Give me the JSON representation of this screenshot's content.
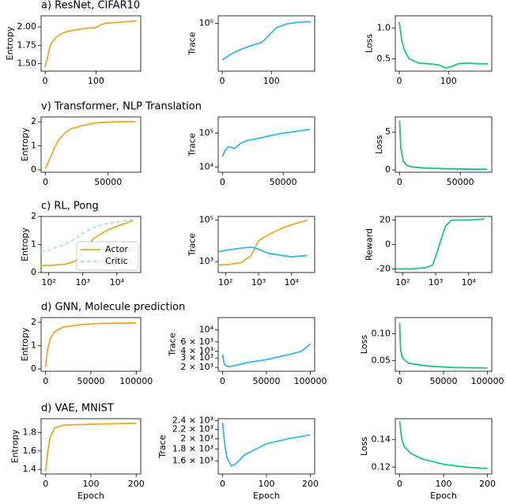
{
  "chart_data": [
    {
      "type": "line",
      "title": "a) ResNet, CIFAR10",
      "ylabel": "Entropy",
      "x": [
        0,
        5,
        10,
        20,
        30,
        40,
        60,
        80,
        100,
        110,
        120,
        140,
        160,
        180
      ],
      "series": [
        {
          "color": "#e8a92a",
          "values": [
            1.45,
            1.6,
            1.75,
            1.85,
            1.9,
            1.93,
            1.96,
            1.98,
            1.99,
            2.03,
            2.05,
            2.06,
            2.07,
            2.08
          ]
        }
      ],
      "xlim": [
        -8,
        188
      ],
      "xticks": [
        0,
        100
      ],
      "ylim": [
        1.4,
        2.15
      ],
      "yticks": [
        {
          "value": 1.5,
          "label": "1.50"
        },
        {
          "value": 1.75,
          "label": "1.75"
        },
        {
          "value": 2.0,
          "label": "2.00"
        }
      ]
    },
    {
      "type": "line",
      "ylabel": "Trace",
      "ylog": true,
      "x": [
        0,
        20,
        40,
        60,
        80,
        90,
        100,
        110,
        130,
        150,
        170,
        180
      ],
      "series": [
        {
          "color": "#36b6e8",
          "values": [
            10000,
            15000,
            20000,
            25000,
            30000,
            40000,
            55000,
            75000,
            95000,
            105000,
            110000,
            110000
          ]
        }
      ],
      "xlim": [
        -8,
        188
      ],
      "xticks": [
        0,
        100
      ],
      "ylim": [
        5000,
        160000
      ],
      "yticks": [
        {
          "value": 100000,
          "label": "10⁵"
        }
      ]
    },
    {
      "type": "line",
      "ylabel": "Loss",
      "x": [
        0,
        5,
        10,
        20,
        40,
        60,
        80,
        95,
        105,
        120,
        140,
        160,
        180
      ],
      "series": [
        {
          "color": "#1fbf8f",
          "values": [
            1.1,
            0.8,
            0.65,
            0.5,
            0.43,
            0.42,
            0.4,
            0.35,
            0.37,
            0.42,
            0.43,
            0.42,
            0.42
          ]
        }
      ],
      "xlim": [
        -8,
        188
      ],
      "xticks": [
        0,
        100
      ],
      "ylim": [
        0.3,
        1.2
      ],
      "yticks": [
        0.5,
        {
          "value": 1.0,
          "label": "1.0"
        }
      ]
    },
    {
      "type": "line",
      "title": "v) Transformer, NLP Translation",
      "ylabel": "Entropy",
      "x": [
        0,
        3000,
        7000,
        10000,
        15000,
        20000,
        30000,
        40000,
        50000,
        60000,
        72000
      ],
      "series": [
        {
          "color": "#e8a92a",
          "values": [
            0.05,
            0.4,
            0.9,
            1.2,
            1.5,
            1.7,
            1.85,
            1.95,
            1.98,
            2.0,
            2.0
          ]
        }
      ],
      "xlim": [
        -3500,
        76000
      ],
      "xticks": [
        0,
        50000
      ],
      "ylim": [
        -0.1,
        2.2
      ],
      "yticks": [
        0,
        1,
        2
      ]
    },
    {
      "type": "line",
      "ylabel": "Trace",
      "ylog": true,
      "x": [
        0,
        2000,
        5000,
        10000,
        15000,
        20000,
        30000,
        40000,
        50000,
        60000,
        72000
      ],
      "series": [
        {
          "color": "#36b6e8",
          "values": [
            20000,
            30000,
            40000,
            35000,
            50000,
            60000,
            70000,
            85000,
            100000,
            110000,
            130000
          ]
        }
      ],
      "xlim": [
        -3500,
        76000
      ],
      "xticks": [
        0,
        50000
      ],
      "ylim": [
        7000,
        300000
      ],
      "yticks": [
        {
          "value": 10000,
          "label": "10⁴"
        },
        {
          "value": 100000,
          "label": "10⁵"
        }
      ]
    },
    {
      "type": "line",
      "ylabel": "Loss",
      "x": [
        0,
        1000,
        3000,
        6000,
        10000,
        20000,
        40000,
        60000,
        72000
      ],
      "series": [
        {
          "color": "#1fbf8f",
          "values": [
            6.5,
            3,
            1.2,
            0.6,
            0.4,
            0.25,
            0.15,
            0.1,
            0.1
          ]
        }
      ],
      "xlim": [
        -3500,
        76000
      ],
      "xticks": [
        0,
        50000
      ],
      "ylim": [
        -0.3,
        7
      ],
      "yticks": [
        0,
        5
      ]
    },
    {
      "type": "line",
      "title": "c) RL, Pong",
      "ylabel": "Entropy",
      "xlog": true,
      "legend": "lower right",
      "x": [
        60,
        100,
        300,
        600,
        1000,
        2000,
        5000,
        10000,
        30000
      ],
      "series": [
        {
          "name": "Actor",
          "color": "#e8a92a",
          "values": [
            0.25,
            0.25,
            0.3,
            0.4,
            0.7,
            1.2,
            1.5,
            1.65,
            1.85
          ]
        },
        {
          "name": "Critic",
          "color": "#a8dcef",
          "dash": true,
          "values": [
            0.75,
            0.8,
            1.0,
            1.2,
            1.4,
            1.6,
            1.75,
            1.8,
            1.9
          ]
        }
      ],
      "xlim": [
        60,
        50000
      ],
      "xticks": [
        {
          "value": 100,
          "label": "10²"
        },
        {
          "value": 1000,
          "label": "10³"
        },
        {
          "value": 10000,
          "label": "10⁴"
        }
      ],
      "ylim": [
        0,
        2
      ],
      "yticks": [
        0,
        1,
        2
      ]
    },
    {
      "type": "line",
      "ylabel": "Trace",
      "xlog": true,
      "ylog": true,
      "x": [
        60,
        100,
        300,
        600,
        1000,
        2000,
        5000,
        10000,
        30000
      ],
      "series": [
        {
          "color": "#e8a92a",
          "values": [
            700,
            700,
            900,
            2000,
            10000,
            20000,
            40000,
            60000,
            100000
          ]
        },
        {
          "color": "#36b6e8",
          "values": [
            3000,
            3500,
            4500,
            5000,
            4000,
            2500,
            2000,
            1700,
            2000
          ]
        }
      ],
      "xlim": [
        60,
        50000
      ],
      "xticks": [
        {
          "value": 100,
          "label": "10²"
        },
        {
          "value": 1000,
          "label": "10³"
        },
        {
          "value": 10000,
          "label": "10⁴"
        }
      ],
      "ylim": [
        300,
        150000
      ],
      "yticks": [
        {
          "value": 1000,
          "label": "10³"
        },
        {
          "value": 100000,
          "label": "10⁵"
        }
      ]
    },
    {
      "type": "line",
      "ylabel": "Reward",
      "xlog": true,
      "x": [
        60,
        200,
        500,
        800,
        1000,
        1500,
        2000,
        3000,
        10000,
        30000
      ],
      "series": [
        {
          "color": "#1fbf8f",
          "values": [
            -20,
            -20,
            -19,
            -17,
            -10,
            5,
            15,
            20,
            20,
            21
          ]
        }
      ],
      "xlim": [
        60,
        50000
      ],
      "xticks": [
        {
          "value": 100,
          "label": "10²"
        },
        {
          "value": 1000,
          "label": "10³"
        },
        {
          "value": 10000,
          "label": "10⁴"
        }
      ],
      "ylim": [
        -23,
        23
      ],
      "yticks": [
        -20,
        0,
        20
      ]
    },
    {
      "type": "line",
      "title": "d) GNN, Molecule prediction",
      "ylabel": "Entropy",
      "x": [
        0,
        2000,
        5000,
        10000,
        20000,
        40000,
        60000,
        100000
      ],
      "series": [
        {
          "color": "#e8a92a",
          "values": [
            0.1,
            0.8,
            1.3,
            1.6,
            1.8,
            1.9,
            1.95,
            1.97
          ]
        }
      ],
      "xlim": [
        -5000,
        105000
      ],
      "xticks": [
        0,
        50000,
        100000
      ],
      "ylim": [
        -0.1,
        2.2
      ],
      "yticks": [
        0,
        1,
        2
      ]
    },
    {
      "type": "line",
      "ylabel": "Trace",
      "ylog": true,
      "x": [
        0,
        2000,
        5000,
        10000,
        20000,
        30000,
        50000,
        70000,
        90000,
        100000
      ],
      "series": [
        {
          "color": "#36b6e8",
          "values": [
            3500,
            2300,
            2100,
            2100,
            2300,
            2500,
            2800,
            3300,
            4000,
            5500
          ]
        }
      ],
      "xlim": [
        -5000,
        105000
      ],
      "xticks": [
        0,
        50000,
        100000
      ],
      "ylim": [
        1700,
        17000
      ],
      "yticks": [
        {
          "value": 2000,
          "label": "2 × 10³"
        },
        {
          "value": 3000,
          "label": "3 × 10³"
        },
        {
          "value": 4000,
          "label": "4 × 10³"
        },
        {
          "value": 6000,
          "label": "6 × 10³"
        },
        {
          "value": 10000,
          "label": "10⁴"
        }
      ]
    },
    {
      "type": "line",
      "ylabel": "Loss",
      "x": [
        0,
        1000,
        3000,
        10000,
        30000,
        60000,
        100000
      ],
      "series": [
        {
          "color": "#1fbf8f",
          "values": [
            0.12,
            0.07,
            0.055,
            0.045,
            0.04,
            0.037,
            0.036
          ]
        }
      ],
      "xlim": [
        -5000,
        105000
      ],
      "xticks": [
        0,
        50000,
        100000
      ],
      "ylim": [
        0.03,
        0.13
      ],
      "yticks": [
        {
          "value": 0.05,
          "label": "0.05"
        },
        {
          "value": 0.1,
          "label": "0.10"
        }
      ]
    },
    {
      "type": "line",
      "title": "d) VAE, MNIST",
      "ylabel": "Entropy",
      "xlabel": "Epoch",
      "x": [
        0,
        5,
        10,
        20,
        40,
        100,
        200
      ],
      "series": [
        {
          "color": "#e8a92a",
          "values": [
            1.38,
            1.6,
            1.75,
            1.85,
            1.88,
            1.89,
            1.9
          ]
        }
      ],
      "xlim": [
        -10,
        210
      ],
      "xticks": [
        0,
        100,
        200
      ],
      "ylim": [
        1.35,
        1.95
      ],
      "yticks": [
        1.4,
        1.6,
        1.8
      ]
    },
    {
      "type": "line",
      "ylabel": "Trace",
      "xlabel": "Epoch",
      "ylog": true,
      "x": [
        0,
        5,
        10,
        20,
        30,
        50,
        100,
        150,
        200
      ],
      "series": [
        {
          "color": "#36b6e8",
          "values": [
            2350,
            1900,
            1650,
            1520,
            1550,
            1700,
            1900,
            2000,
            2080
          ]
        }
      ],
      "xlim": [
        -10,
        210
      ],
      "xticks": [
        0,
        100,
        200
      ],
      "ylim": [
        1400,
        2450
      ],
      "yticks": [
        {
          "value": 1600,
          "label": "1.6 × 10³"
        },
        {
          "value": 1800,
          "label": "1.8 × 10³"
        },
        {
          "value": 2000,
          "label": "2 × 10³"
        },
        {
          "value": 2200,
          "label": "2.2 × 10³"
        },
        {
          "value": 2400,
          "label": "2.4 × 10³"
        }
      ]
    },
    {
      "type": "line",
      "ylabel": "Loss",
      "xlabel": "Epoch",
      "x": [
        0,
        5,
        10,
        25,
        50,
        100,
        150,
        200
      ],
      "series": [
        {
          "color": "#1fbf8f",
          "values": [
            0.153,
            0.14,
            0.135,
            0.13,
            0.126,
            0.122,
            0.12,
            0.119
          ]
        }
      ],
      "xlim": [
        -10,
        210
      ],
      "xticks": [
        0,
        100,
        200
      ],
      "ylim": [
        0.115,
        0.155
      ],
      "yticks": [
        0.12,
        0.14
      ]
    }
  ]
}
